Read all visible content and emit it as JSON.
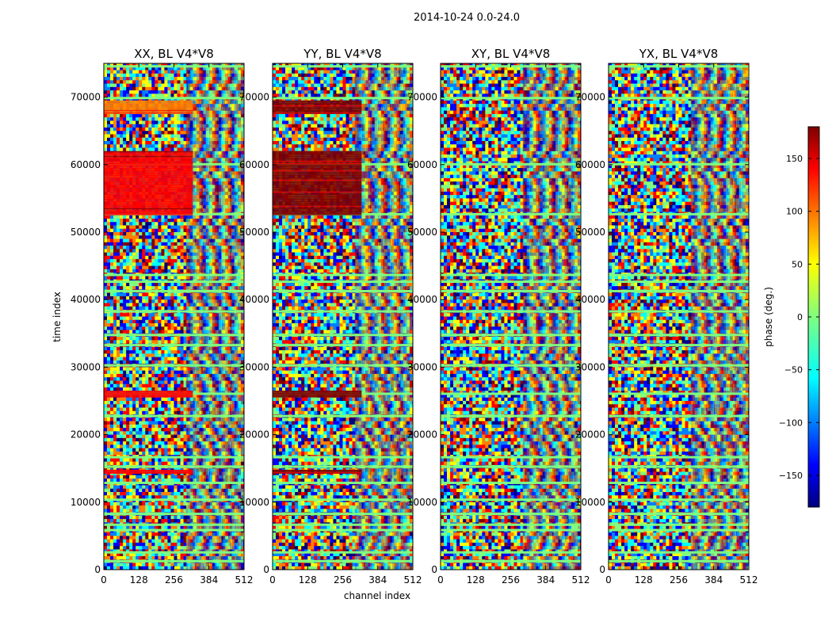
{
  "figure": {
    "suptitle": "2014-10-24 0.0-24.0",
    "xlabel": "channel index",
    "ylabel": "time index"
  },
  "chart_data": {
    "type": "heatmap",
    "description_note": "Four phase waterfall panels (time vs channel)",
    "xlim": [
      0,
      512
    ],
    "ylim": [
      0,
      75000
    ],
    "xticks": [
      0,
      128,
      256,
      384,
      512
    ],
    "yticks": [
      0,
      10000,
      20000,
      30000,
      40000,
      50000,
      60000,
      70000
    ],
    "colorbar": {
      "label": "phase (deg.)",
      "range": [
        -180,
        180
      ],
      "ticks": [
        -150,
        -100,
        -50,
        0,
        50,
        100,
        150
      ],
      "tick_labels": [
        "−150",
        "−100",
        "−50",
        "0",
        "50",
        "100",
        "150"
      ],
      "colormap": "jet",
      "colors": [
        "#00007f",
        "#0000ff",
        "#007fff",
        "#00ffff",
        "#7fff7f",
        "#ffff00",
        "#ff7f00",
        "#ff0000",
        "#7f0000"
      ]
    },
    "panels": [
      {
        "title": "XX, BL V4*V8",
        "flat_bands": [
          {
            "t0": 67500,
            "t1": 69500,
            "c0": 0,
            "c1": 325,
            "phase": 110
          },
          {
            "t0": 52500,
            "t1": 62000,
            "c0": 0,
            "c1": 325,
            "phase": 140
          },
          {
            "t0": 25500,
            "t1": 26500,
            "c0": 0,
            "c1": 325,
            "phase": 140
          },
          {
            "t0": 14200,
            "t1": 14800,
            "c0": 0,
            "c1": 325,
            "phase": 130
          }
        ]
      },
      {
        "title": "YY, BL V4*V8",
        "flat_bands": [
          {
            "t0": 67500,
            "t1": 69500,
            "c0": 0,
            "c1": 325,
            "phase": 160
          },
          {
            "t0": 52500,
            "t1": 62000,
            "c0": 0,
            "c1": 325,
            "phase": 175
          },
          {
            "t0": 25500,
            "t1": 26500,
            "c0": 0,
            "c1": 325,
            "phase": 170
          },
          {
            "t0": 14200,
            "t1": 14800,
            "c0": 0,
            "c1": 325,
            "phase": 160
          }
        ]
      },
      {
        "title": "XY, BL V4*V8",
        "flat_bands": []
      },
      {
        "title": "YX, BL V4*V8",
        "flat_bands": []
      }
    ],
    "flagged_rows": [
      1200,
      2500,
      5800,
      6600,
      8200,
      10300,
      12800,
      15200,
      16600,
      22700,
      26000,
      30200,
      33200,
      34700,
      38200,
      41200,
      42600,
      43600,
      52600,
      60000,
      69800,
      74500
    ]
  }
}
